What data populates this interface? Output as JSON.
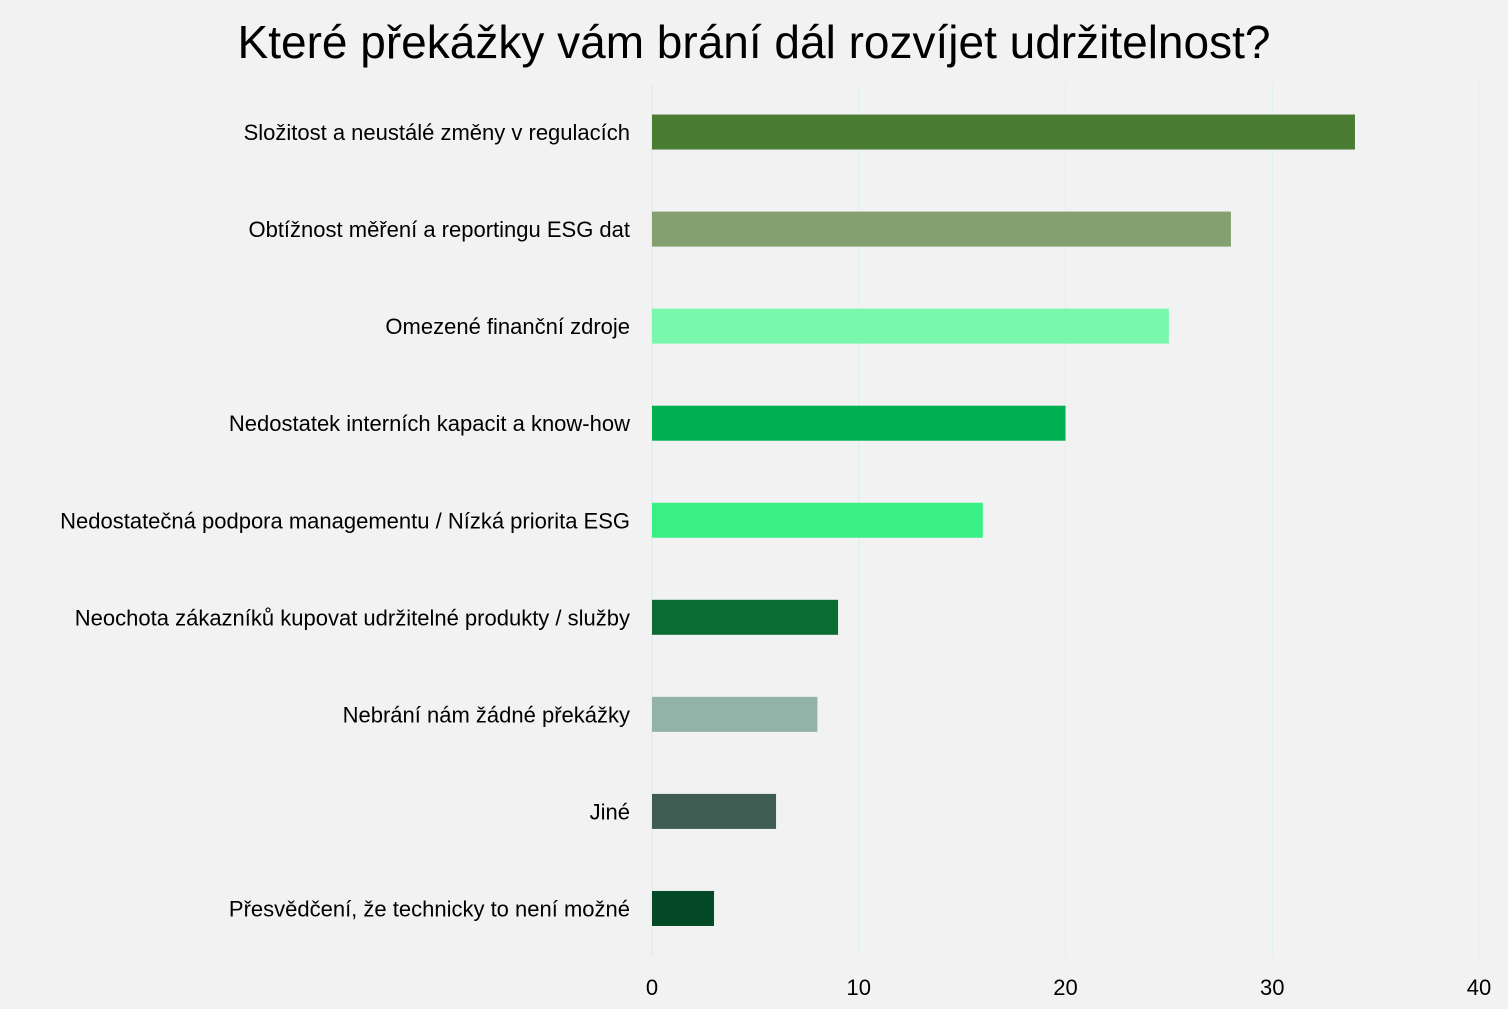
{
  "chart_data": {
    "type": "bar",
    "orientation": "horizontal",
    "title": "Které překážky vám brání dál rozvíjet udržitelnost?",
    "categories": [
      "Složitost a neustálé změny v regulacích",
      "Obtížnost měření a reportingu ESG dat",
      "Omezené finanční zdroje",
      "Nedostatek interních kapacit a know-how",
      "Nedostatečná podpora managementu / Nízká priorita ESG",
      "Neochota zákazníků kupovat udržitelné produkty / služby",
      "Nebrání nám žádné překážky",
      "Jiné",
      "Přesvědčení, že technicky to není možné"
    ],
    "values": [
      34,
      28,
      25,
      20,
      16,
      9,
      8,
      6,
      3
    ],
    "colors": [
      "#4a7c34",
      "#83a06e",
      "#79f7ac",
      "#00b050",
      "#38f086",
      "#0b6b33",
      "#93b2a8",
      "#3e5c52",
      "#054a26"
    ],
    "xlim": [
      0,
      40
    ],
    "xticks": [
      "0",
      "10",
      "20",
      "30",
      "40"
    ],
    "grid": true,
    "background": "#f2f2f2",
    "gridline_color": "#d8f2ec"
  }
}
